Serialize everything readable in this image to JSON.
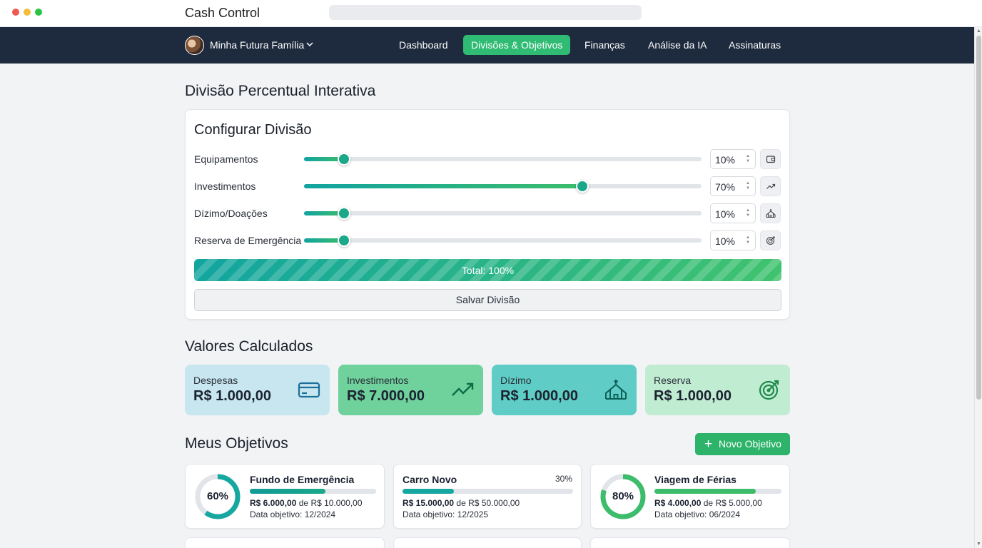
{
  "window": {
    "title": "Cash Control"
  },
  "nav": {
    "family_name": "Minha Futura Família",
    "items": [
      "Dashboard",
      "Divisões & Objetivos",
      "Finanças",
      "Análise da IA",
      "Assinaturas"
    ],
    "active_index": 1
  },
  "colors": {
    "accent": "#2fbb73",
    "navbar": "#1e2a3d",
    "slider": "#1aa889"
  },
  "division": {
    "section_title": "Divisão Percentual Interativa",
    "card_title": "Configurar Divisão",
    "rows": [
      {
        "label": "Equipamentos",
        "value": 10,
        "value_text": "10%",
        "icon": "wallet-icon"
      },
      {
        "label": "Investimentos",
        "value": 70,
        "value_text": "70%",
        "icon": "trending-up-icon"
      },
      {
        "label": "Dízimo/Doações",
        "value": 10,
        "value_text": "10%",
        "icon": "church-icon"
      },
      {
        "label": "Reserva de Emergência",
        "value": 10,
        "value_text": "10%",
        "icon": "target-icon"
      }
    ],
    "total_label": "Total: 100%",
    "save_label": "Salvar Divisão"
  },
  "calculated": {
    "title": "Valores Calculados",
    "cards": [
      {
        "label": "Despesas",
        "amount": "R$ 1.000,00",
        "icon": "credit-card-icon"
      },
      {
        "label": "Investimentos",
        "amount": "R$ 7.000,00",
        "icon": "trending-up-icon"
      },
      {
        "label": "Dízimo",
        "amount": "R$ 1.000,00",
        "icon": "church-icon"
      },
      {
        "label": "Reserva",
        "amount": "R$ 1.000,00",
        "icon": "target-icon"
      }
    ]
  },
  "goals": {
    "title": "Meus Objetivos",
    "new_button": "Novo Objetivo",
    "items": [
      {
        "name": "Fundo de Emergência",
        "progress": 0.6,
        "pct_text": "60%",
        "current": "R$ 6.000,00",
        "of": "de",
        "target": "R$ 10.000,00",
        "date": "Data objetivo: 12/2024"
      },
      {
        "name": "Carro Novo",
        "progress": 0.3,
        "pct_text": "30%",
        "current": "R$ 15.000,00",
        "of": "de",
        "target": "R$ 50.000,00",
        "date": "Data objetivo: 12/2025"
      },
      {
        "name": "Viagem de Férias",
        "progress": 0.8,
        "pct_text": "80%",
        "current": "R$ 4.000,00",
        "of": "de",
        "target": "R$ 5.000,00",
        "date": "Data objetivo: 06/2024"
      }
    ]
  }
}
